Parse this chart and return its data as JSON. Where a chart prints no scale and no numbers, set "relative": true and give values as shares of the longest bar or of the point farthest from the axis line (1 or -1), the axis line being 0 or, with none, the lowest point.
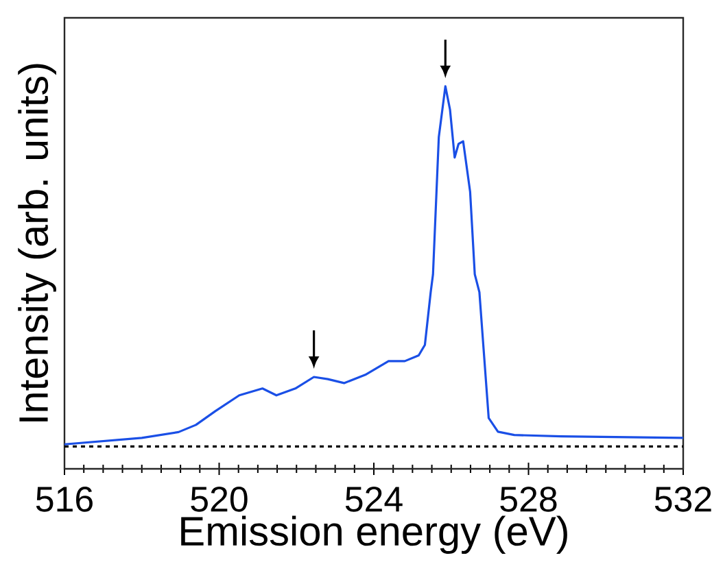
{
  "chart_data": {
    "type": "line",
    "relative": true,
    "xlabel": "Emission energy (eV)",
    "ylabel": "Intensity (arb. units)",
    "xlim": [
      516,
      532
    ],
    "xticks": [
      516,
      520,
      524,
      528,
      532
    ],
    "tick_labels": "x",
    "series": [
      {
        "color": "#1a4fe6",
        "x": [
          516.0,
          518.0,
          518.95,
          519.4,
          519.9,
          520.52,
          521.12,
          521.48,
          521.97,
          522.45,
          522.81,
          523.23,
          523.78,
          524.38,
          524.8,
          525.16,
          525.32,
          525.47,
          525.53,
          525.68,
          525.85,
          525.97,
          526.09,
          526.19,
          526.31,
          526.49,
          526.61,
          526.73,
          526.97,
          527.21,
          527.63,
          528.84,
          532.0
        ],
        "values": [
          0.006,
          0.024,
          0.04,
          0.06,
          0.098,
          0.142,
          0.161,
          0.142,
          0.161,
          0.193,
          0.187,
          0.176,
          0.199,
          0.237,
          0.237,
          0.253,
          0.282,
          0.428,
          0.478,
          0.859,
          1.0,
          0.935,
          0.802,
          0.84,
          0.847,
          0.707,
          0.478,
          0.428,
          0.079,
          0.041,
          0.032,
          0.028,
          0.024
        ]
      }
    ],
    "ref_lines": [
      {
        "axis": "y",
        "value": 0,
        "line_style": "dotted",
        "color": "#000000"
      }
    ]
  }
}
